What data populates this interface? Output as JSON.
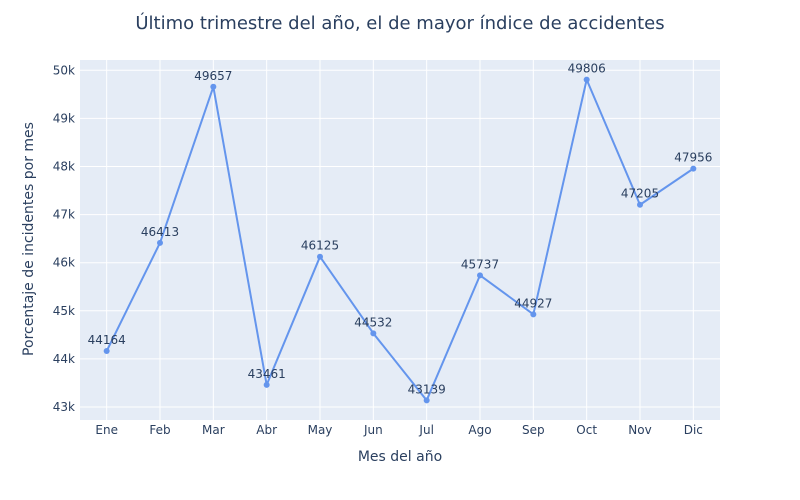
{
  "chart_data": {
    "type": "line",
    "title": "Último trimestre del año, el de mayor índice de accidentes",
    "xlabel": "Mes del año",
    "ylabel": "Porcentaje de incidentes por mes",
    "categories": [
      "Ene",
      "Feb",
      "Mar",
      "Abr",
      "May",
      "Jun",
      "Jul",
      "Ago",
      "Sep",
      "Oct",
      "Nov",
      "Dic"
    ],
    "series": [
      {
        "values": [
          44164,
          46413,
          49657,
          43461,
          46125,
          44532,
          43139,
          45737,
          44927,
          49806,
          47205,
          47956
        ],
        "color": "#6495ed"
      }
    ],
    "ylim": [
      42730,
      50214
    ],
    "yticks": [
      43000,
      44000,
      45000,
      46000,
      47000,
      48000,
      49000,
      50000
    ],
    "ytick_labels": [
      "43k",
      "44k",
      "45k",
      "46k",
      "47k",
      "48k",
      "49k",
      "50k"
    ],
    "grid": true,
    "colors": {
      "plot_bg": "#e5ecf6",
      "grid": "#ffffff",
      "text": "#2a3f5f"
    }
  }
}
